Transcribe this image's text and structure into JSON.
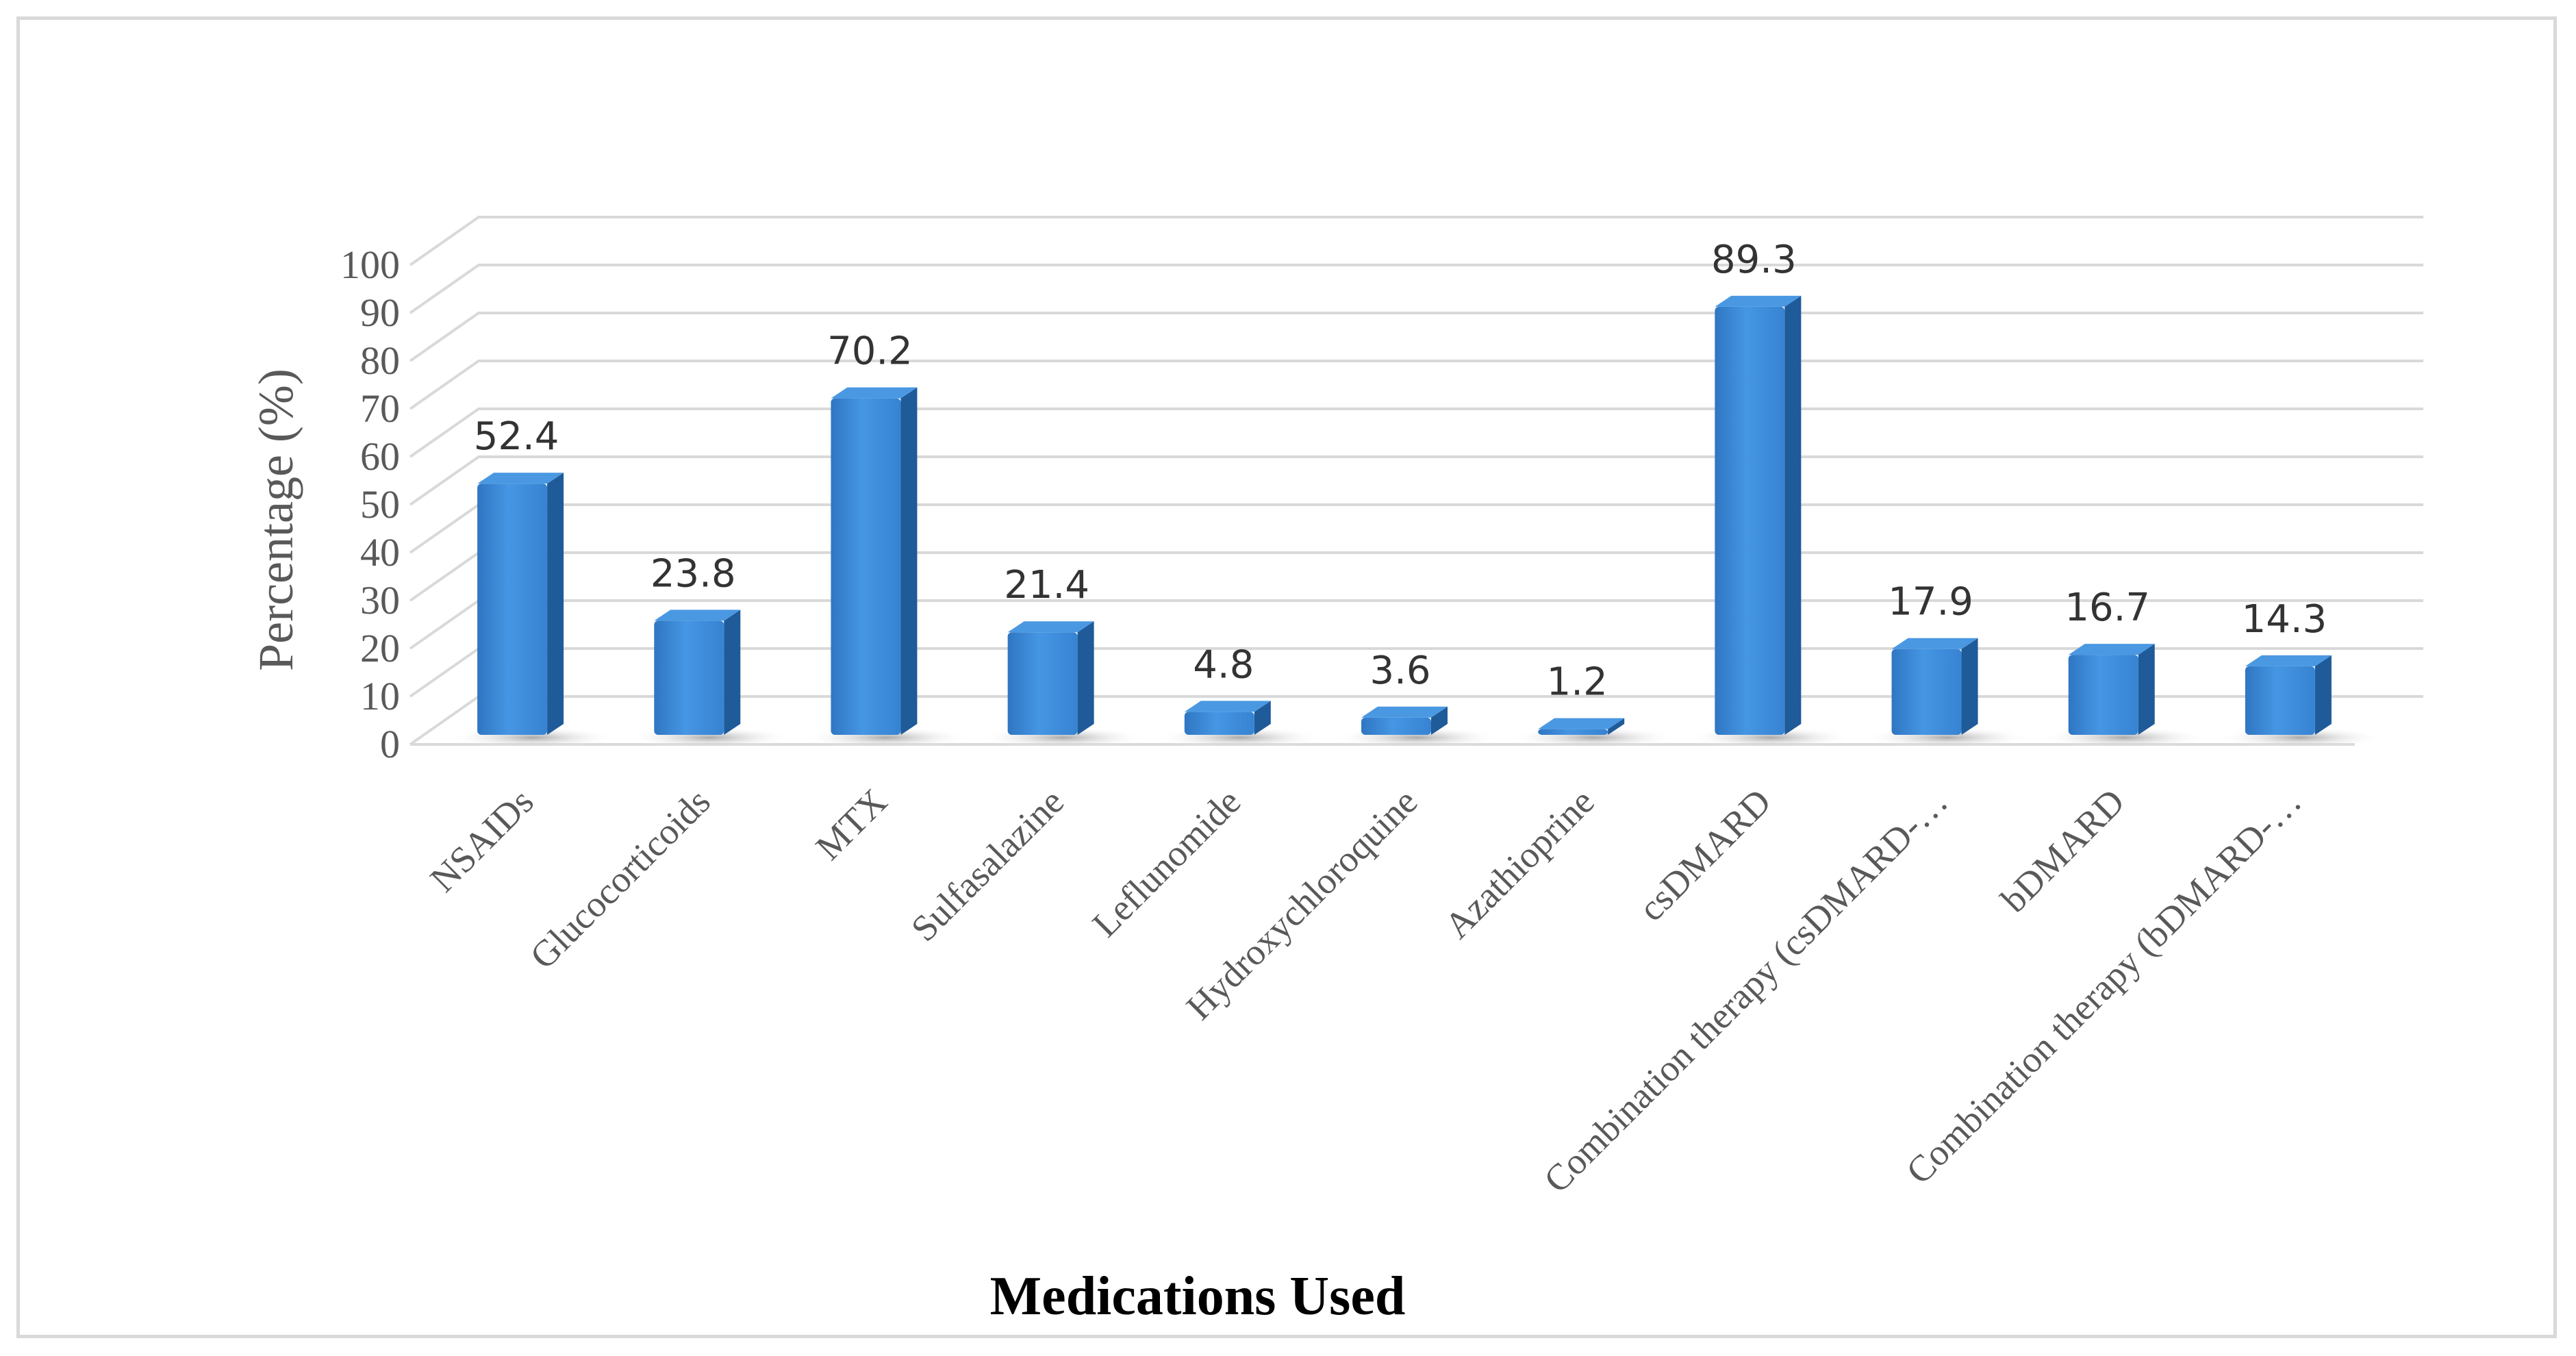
{
  "chart_data": {
    "type": "bar",
    "style": "3d-column",
    "title": "",
    "xlabel": "Medications Used",
    "ylabel": "Percentage (%)",
    "ylim": [
      0,
      100
    ],
    "yticks": [
      0,
      10,
      20,
      30,
      40,
      50,
      60,
      70,
      80,
      90,
      100
    ],
    "grid": true,
    "legend": "none",
    "bar_color": "#3a86d4",
    "categories": [
      "NSAIDs",
      "Glucocorticoids",
      "MTX",
      "Sulfasalazine",
      "Leflunomide",
      "Hydroxychloroquine",
      "Azathioprine",
      "csDMARD",
      "Combination therapy (csDMARD-…",
      "bDMARD",
      "Combination therapy (bDMARD-…"
    ],
    "values": [
      52.4,
      23.8,
      70.2,
      21.4,
      4.8,
      3.6,
      1.2,
      89.3,
      17.9,
      16.7,
      14.3
    ],
    "data_labels": [
      "52.4",
      "23.8",
      "70.2",
      "21.4",
      "4.8",
      "3.6",
      "1.2",
      "89.3",
      "17.9",
      "16.7",
      "14.3"
    ]
  }
}
